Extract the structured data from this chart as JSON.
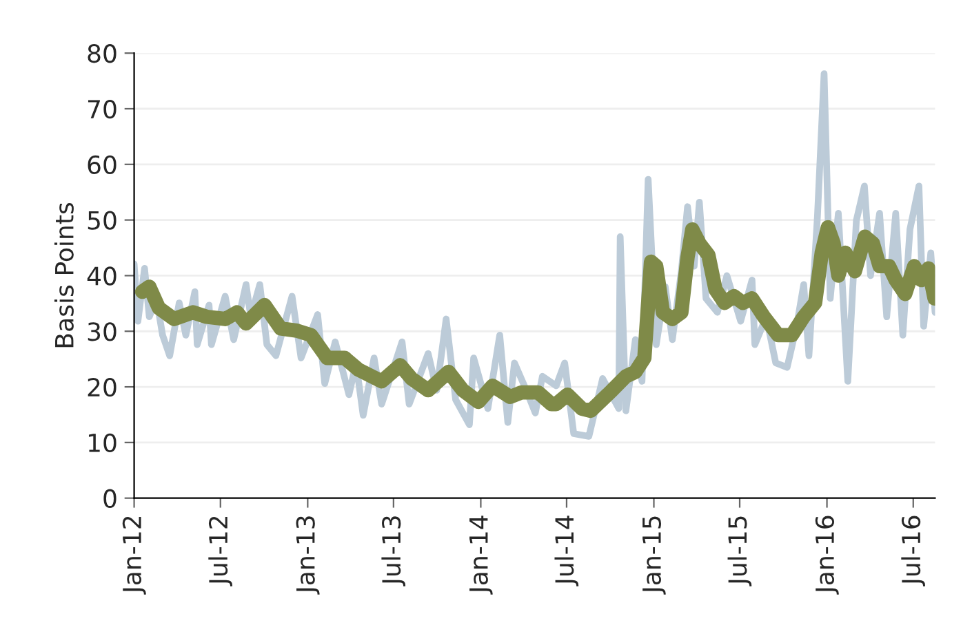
{
  "chart_data": {
    "type": "line",
    "ylabel": "Basis Points",
    "series": [
      {
        "color": "#bccbd8",
        "x": [
          "2012-01-01",
          "2012-01-09",
          "2012-01-23",
          "2012-02-02",
          "2012-02-17",
          "2012-03-01",
          "2012-03-16",
          "2012-04-05",
          "2012-04-19",
          "2012-05-08",
          "2012-05-13",
          "2012-06-07",
          "2012-06-12",
          "2012-07-11",
          "2012-07-29",
          "2012-08-24",
          "2012-09-03",
          "2012-09-22",
          "2012-10-07",
          "2012-10-26",
          "2012-11-29",
          "2012-12-18",
          "2013-01-22",
          "2013-02-06",
          "2013-02-28",
          "2013-03-29",
          "2013-04-13",
          "2013-04-28",
          "2013-05-21",
          "2013-06-06",
          "2013-07-19",
          "2013-08-03",
          "2013-09-12",
          "2013-09-30",
          "2013-10-20",
          "2013-11-09",
          "2013-12-08",
          "2013-12-17",
          "2014-01-16",
          "2014-02-10",
          "2014-02-27",
          "2014-03-13",
          "2014-04-07",
          "2014-04-26",
          "2014-05-11",
          "2014-06-09",
          "2014-06-27",
          "2014-07-16",
          "2014-08-17",
          "2014-09-15",
          "2014-10-19",
          "2014-10-22",
          "2014-11-03",
          "2014-11-23",
          "2014-12-07",
          "2014-12-20",
          "2015-01-06",
          "2015-01-25",
          "2015-02-09",
          "2015-02-28",
          "2015-03-13",
          "2015-03-27",
          "2015-04-07",
          "2015-04-21",
          "2015-05-15",
          "2015-06-04",
          "2015-07-03",
          "2015-07-27",
          "2015-08-02",
          "2015-08-26",
          "2015-09-15",
          "2015-10-09",
          "2015-10-29",
          "2015-11-13",
          "2015-11-24",
          "2015-12-12",
          "2015-12-26",
          "2016-01-08",
          "2016-01-25",
          "2016-02-14",
          "2016-03-03",
          "2016-03-20",
          "2016-04-02",
          "2016-04-21",
          "2016-05-06",
          "2016-05-25",
          "2016-06-09",
          "2016-06-24",
          "2016-07-13",
          "2016-07-23",
          "2016-08-07",
          "2016-08-16"
        ],
        "values": [
          42.1,
          31.8,
          41.3,
          32.6,
          35.9,
          29.3,
          25.6,
          35.1,
          29.3,
          37.1,
          27.6,
          34.7,
          27.6,
          36.3,
          28.5,
          38.4,
          32.6,
          38.4,
          27.6,
          25.6,
          36.3,
          25.2,
          33.0,
          20.6,
          28.1,
          18.6,
          24.3,
          14.9,
          25.2,
          16.9,
          28.1,
          16.9,
          26.0,
          19.4,
          32.2,
          17.7,
          13.2,
          25.2,
          16.1,
          29.3,
          13.6,
          24.3,
          19.4,
          15.3,
          21.9,
          20.2,
          24.3,
          11.6,
          11.1,
          21.5,
          16.1,
          47.0,
          15.7,
          28.5,
          21.0,
          57.3,
          27.6,
          38.0,
          28.5,
          40.8,
          52.4,
          41.7,
          53.2,
          35.9,
          33.4,
          40.0,
          31.8,
          39.2,
          27.6,
          32.6,
          24.3,
          23.5,
          30.9,
          38.4,
          25.6,
          50.7,
          76.3,
          35.9,
          51.2,
          21.0,
          49.9,
          56.1,
          40.0,
          51.2,
          32.6,
          51.2,
          29.3,
          48.3,
          56.1,
          30.9,
          44.1,
          33.4
        ]
      },
      {
        "color": "#7f8a48",
        "x": [
          "2012-01-18",
          "2012-02-02",
          "2012-02-22",
          "2012-03-25",
          "2012-05-04",
          "2012-06-02",
          "2012-07-11",
          "2012-08-05",
          "2012-08-24",
          "2012-10-02",
          "2012-11-05",
          "2012-12-09",
          "2013-01-08",
          "2013-02-11",
          "2013-03-20",
          "2013-04-18",
          "2013-06-06",
          "2013-07-15",
          "2013-08-08",
          "2013-09-12",
          "2013-10-25",
          "2013-11-24",
          "2013-12-27",
          "2014-01-26",
          "2014-03-04",
          "2014-03-28",
          "2014-05-02",
          "2014-05-30",
          "2014-06-09",
          "2014-07-03",
          "2014-08-02",
          "2014-08-21",
          "2014-10-05",
          "2014-11-03",
          "2014-11-23",
          "2014-12-12",
          "2014-12-26",
          "2015-01-06",
          "2015-01-20",
          "2015-02-09",
          "2015-02-28",
          "2015-03-13",
          "2015-03-23",
          "2015-04-07",
          "2015-04-26",
          "2015-05-11",
          "2015-05-30",
          "2015-06-19",
          "2015-07-08",
          "2015-07-27",
          "2015-08-21",
          "2015-09-20",
          "2015-10-19",
          "2015-11-13",
          "2015-12-07",
          "2015-12-21",
          "2016-01-03",
          "2016-01-15",
          "2016-01-25",
          "2016-02-09",
          "2016-02-29",
          "2016-03-21",
          "2016-04-07",
          "2016-04-21",
          "2016-05-11",
          "2016-05-25",
          "2016-06-14",
          "2016-07-03",
          "2016-07-18",
          "2016-08-02",
          "2016-08-15"
        ],
        "values": [
          37.1,
          38.0,
          34.2,
          32.2,
          33.4,
          32.6,
          32.2,
          33.4,
          31.4,
          34.7,
          30.5,
          30.1,
          29.3,
          25.2,
          25.2,
          23.1,
          21.0,
          23.9,
          21.5,
          19.4,
          22.7,
          19.4,
          17.3,
          20.2,
          18.2,
          19.0,
          19.0,
          16.9,
          16.9,
          18.6,
          16.1,
          15.7,
          19.4,
          21.9,
          22.7,
          25.2,
          42.5,
          41.7,
          33.4,
          32.2,
          33.4,
          43.3,
          48.3,
          45.8,
          43.7,
          37.5,
          35.1,
          36.3,
          35.1,
          35.9,
          32.6,
          29.3,
          29.3,
          32.6,
          35.1,
          44.1,
          48.7,
          45.8,
          40.0,
          44.1,
          40.8,
          47.0,
          45.8,
          41.7,
          41.7,
          39.2,
          36.7,
          41.7,
          39.2,
          41.3,
          35.9
        ]
      }
    ],
    "xlim": [
      "2012-01-01",
      "2016-08-16"
    ],
    "xticks": [
      {
        "value": "2012-01",
        "label": "Jan-12"
      },
      {
        "value": "2012-07",
        "label": "Jul-12"
      },
      {
        "value": "2013-01",
        "label": "Jan-13"
      },
      {
        "value": "2013-07",
        "label": "Jul-13"
      },
      {
        "value": "2014-01",
        "label": "Jan-14"
      },
      {
        "value": "2014-07",
        "label": "Jul-14"
      },
      {
        "value": "2015-01",
        "label": "Jan-15"
      },
      {
        "value": "2015-07",
        "label": "Jul-15"
      },
      {
        "value": "2016-01",
        "label": "Jan-16"
      },
      {
        "value": "2016-07",
        "label": "Jul-16"
      }
    ],
    "ylim": [
      0,
      80
    ],
    "yticks": [
      0,
      10,
      20,
      30,
      40,
      50,
      60,
      70,
      80
    ],
    "grid": "y",
    "marker": "none",
    "line_style": "solid"
  }
}
